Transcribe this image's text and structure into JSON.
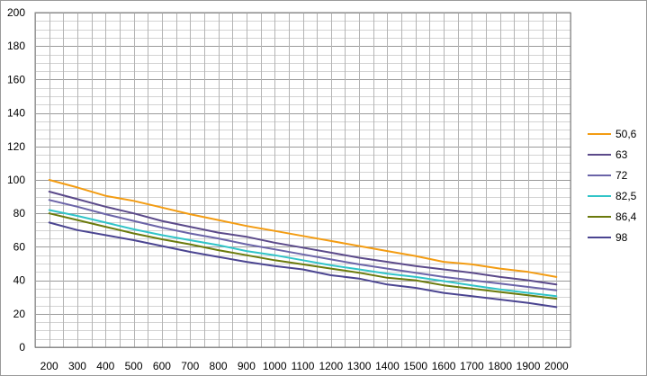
{
  "chart_data": {
    "type": "line",
    "title": "",
    "xlabel": "",
    "ylabel": "",
    "x": [
      200,
      300,
      400,
      500,
      600,
      700,
      800,
      900,
      1000,
      1100,
      1200,
      1300,
      1400,
      1500,
      1600,
      1700,
      1800,
      1900,
      2000
    ],
    "xlim": [
      150,
      2050
    ],
    "ylim": [
      0,
      200
    ],
    "x_ticks": [
      200,
      300,
      400,
      500,
      600,
      700,
      800,
      900,
      1000,
      1100,
      1200,
      1300,
      1400,
      1500,
      1600,
      1700,
      1800,
      1900,
      2000
    ],
    "y_ticks": [
      0,
      20,
      40,
      60,
      80,
      100,
      120,
      140,
      160,
      180,
      200
    ],
    "grid": true,
    "legend_position": "right",
    "series": [
      {
        "name": "50,6",
        "color": "#f39c12",
        "values": [
          100,
          95.5,
          90.5,
          87.5,
          83.5,
          79.5,
          76,
          72.5,
          69.5,
          66.5,
          63.5,
          60.5,
          57.5,
          54.5,
          51,
          49.5,
          47,
          45,
          42
        ]
      },
      {
        "name": "63",
        "color": "#5b4a8a",
        "values": [
          93,
          88.5,
          84,
          80,
          75.5,
          72,
          68.5,
          66,
          62.5,
          59.5,
          56.5,
          53.5,
          51,
          48.5,
          46.5,
          44.5,
          42,
          40,
          37.5
        ]
      },
      {
        "name": "72",
        "color": "#6b64a8",
        "values": [
          88,
          84,
          79.5,
          75.5,
          71.5,
          68,
          65,
          61.5,
          58.5,
          55.5,
          52.5,
          49.5,
          47,
          44.5,
          42,
          40,
          38,
          36,
          34
        ]
      },
      {
        "name": "82,5",
        "color": "#31c4c8",
        "values": [
          82,
          78.5,
          74.5,
          70.5,
          67,
          64,
          61,
          57.5,
          55,
          52,
          49,
          46.5,
          44,
          42,
          39.5,
          37,
          34.5,
          32.5,
          30.5
        ]
      },
      {
        "name": "86,4",
        "color": "#6b7a0c",
        "values": [
          80,
          76,
          72,
          68,
          64.5,
          61.5,
          58,
          55,
          52,
          49.5,
          47,
          44.5,
          41.5,
          40,
          37,
          35,
          33,
          31,
          29
        ]
      },
      {
        "name": "98",
        "color": "#4b4591",
        "values": [
          74.5,
          70,
          67,
          64,
          60.5,
          57,
          54,
          51,
          48.5,
          46.5,
          43,
          41,
          37.5,
          35.5,
          32.5,
          30.5,
          28.5,
          26.5,
          24
        ]
      }
    ]
  }
}
